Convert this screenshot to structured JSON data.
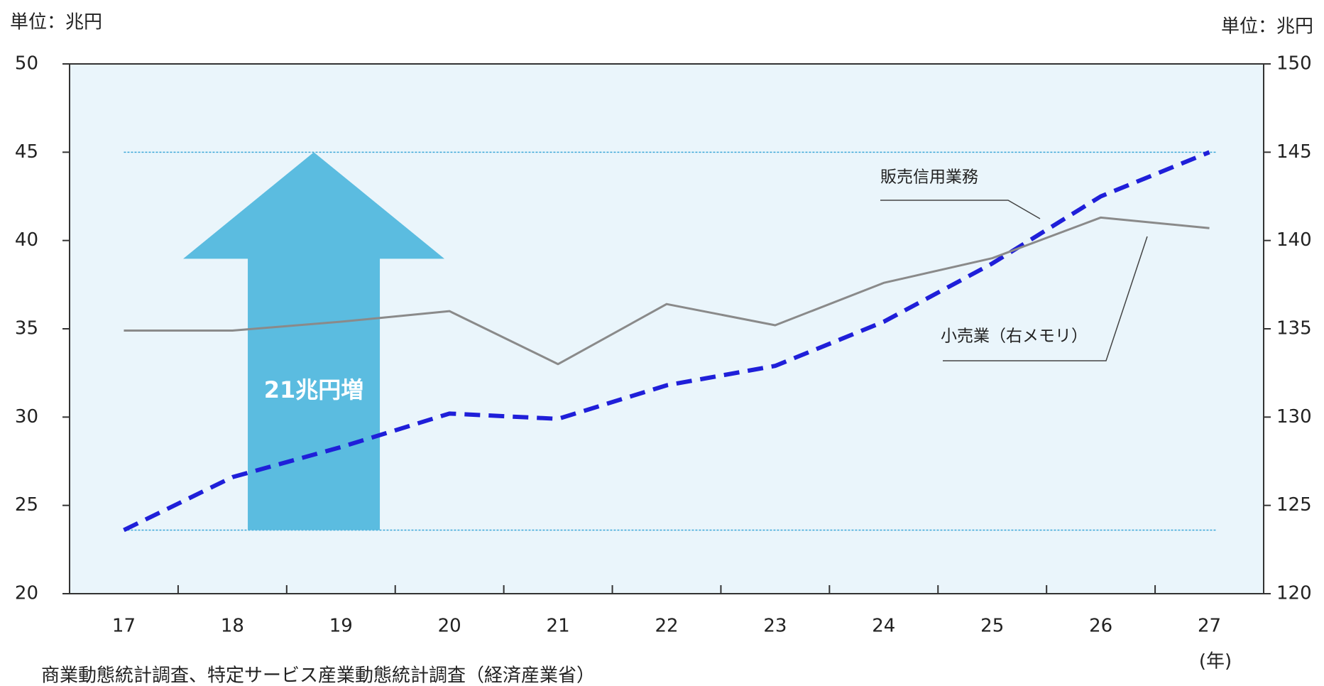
{
  "chart_data": {
    "type": "line",
    "unit_left": "単位：兆円",
    "unit_right": "単位：兆円",
    "x_unit": "(年)",
    "source": "商業動態統計調査、特定サービス産業動態統計調査（経済産業省）",
    "categories": [
      "17",
      "18",
      "19",
      "20",
      "21",
      "22",
      "23",
      "24",
      "25",
      "26",
      "27"
    ],
    "series": [
      {
        "name": "販売信用業務",
        "color": "#1f1fd9",
        "dashed": true,
        "axis": "y",
        "values": [
          23.6,
          26.6,
          28.3,
          30.2,
          29.9,
          31.8,
          32.9,
          35.4,
          38.7,
          42.5,
          45.0
        ]
      },
      {
        "name": "小売業（右メモリ）",
        "color": "#8a8a8a",
        "dashed": false,
        "axis": "y2",
        "values": [
          134.9,
          134.9,
          135.4,
          136.0,
          133.0,
          136.4,
          135.2,
          137.6,
          139.0,
          141.3,
          140.7
        ]
      }
    ],
    "arrow": {
      "label": "21兆円増",
      "from": 23.6,
      "to": 45.0,
      "color": "#5bbce0"
    },
    "ylim": [
      20,
      50
    ],
    "yticks": [
      20,
      25,
      30,
      35,
      40,
      45,
      50
    ],
    "y2lim": [
      120,
      150
    ],
    "y2ticks": [
      120,
      125,
      130,
      135,
      140,
      145,
      150
    ],
    "background": "#eaf5fb"
  }
}
